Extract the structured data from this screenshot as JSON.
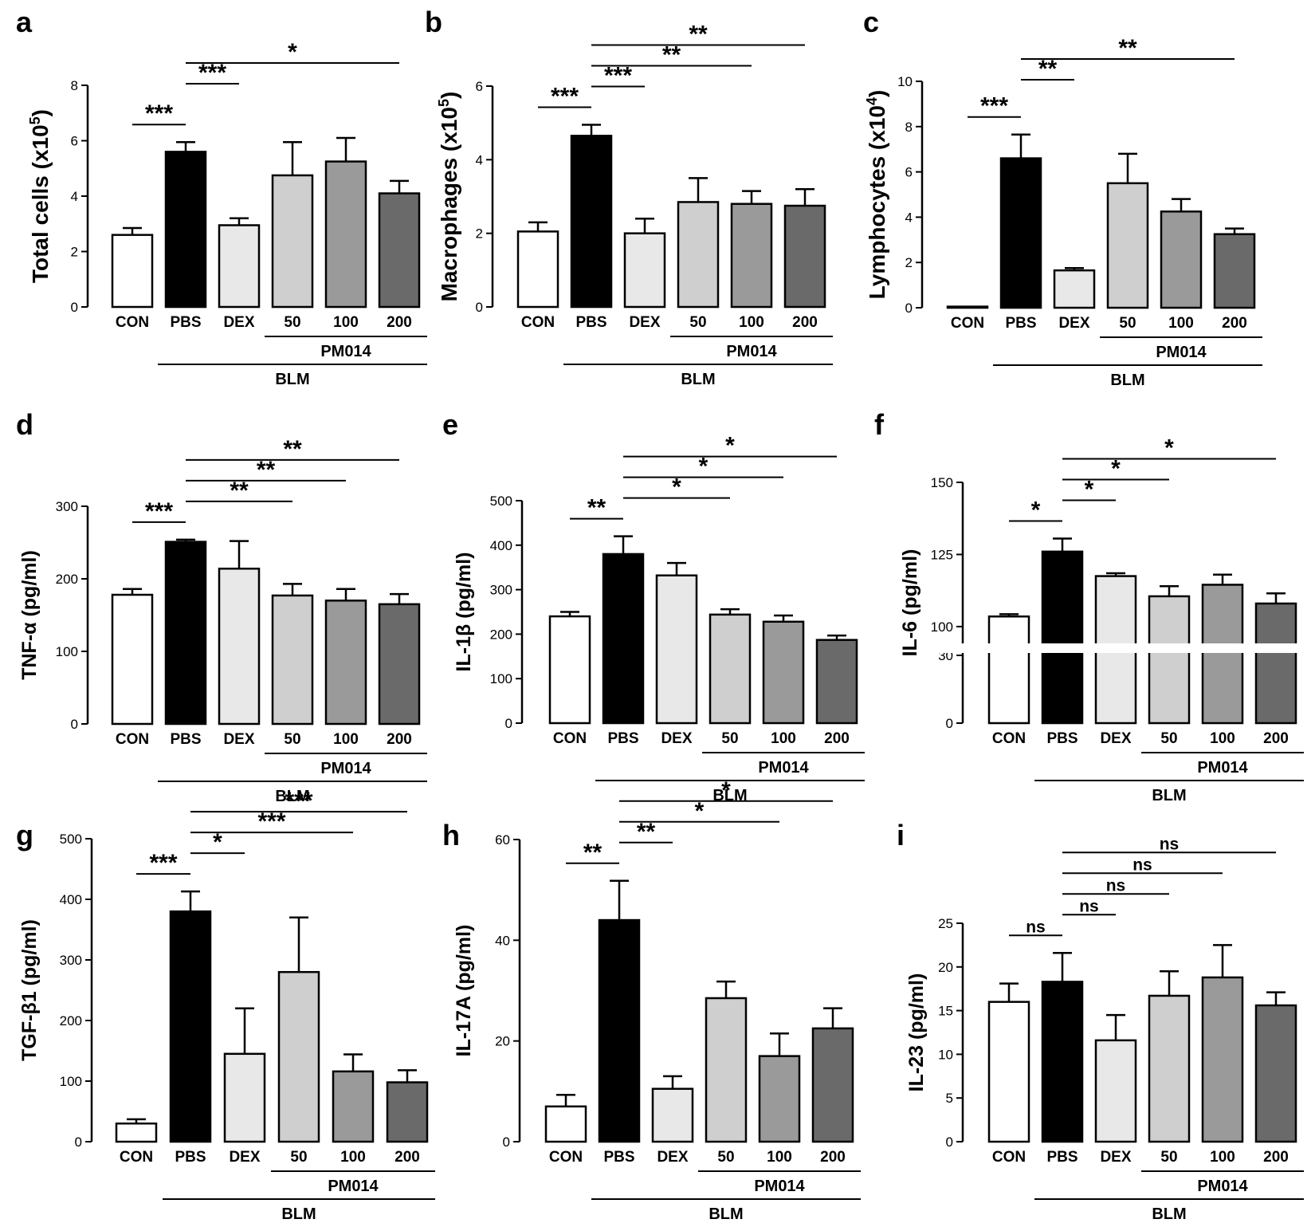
{
  "figure": {
    "description_groups": {
      "categories": [
        "CON",
        "PBS",
        "DEX",
        "50",
        "100",
        "200"
      ],
      "group_label_1": "PM014",
      "group_label_2": "BLM"
    }
  },
  "colors": {
    "CON": "#ffffff",
    "PBS": "#000000",
    "DEX": "#e8e8e8",
    "d50": "#cfcfcf",
    "d100": "#9a9a9a",
    "d200": "#6a6a6a",
    "stroke": "#000000"
  },
  "chart_data": [
    {
      "panel": "a",
      "type": "bar",
      "ylabel_main": "Total cells (x10",
      "ylabel_sup": "5",
      "ylabel_end": ")",
      "categories": [
        "CON",
        "PBS",
        "DEX",
        "50",
        "100",
        "200"
      ],
      "values": [
        2.6,
        5.6,
        2.95,
        4.75,
        5.25,
        4.1
      ],
      "errors": [
        0.25,
        0.35,
        0.25,
        1.2,
        0.85,
        0.45
      ],
      "ylim": [
        0,
        8
      ],
      "ticks": [
        "0",
        "2",
        "4",
        "6",
        "8"
      ],
      "tick_values": [
        0,
        2,
        4,
        6,
        8
      ],
      "group_label_1": "PM014",
      "group_label_2": "BLM",
      "sig": [
        {
          "from": 0,
          "to": 1,
          "label": "***"
        },
        {
          "from": 1,
          "to": 2,
          "label": "***"
        },
        {
          "from": 1,
          "to": 5,
          "label": "*"
        }
      ]
    },
    {
      "panel": "b",
      "type": "bar",
      "ylabel_main": "Macrophages (x10",
      "ylabel_sup": "5",
      "ylabel_end": ")",
      "categories": [
        "CON",
        "PBS",
        "DEX",
        "50",
        "100",
        "200"
      ],
      "values": [
        2.05,
        4.65,
        2.0,
        2.85,
        2.8,
        2.75
      ],
      "errors": [
        0.25,
        0.3,
        0.4,
        0.65,
        0.35,
        0.45
      ],
      "ylim": [
        0,
        6
      ],
      "ticks": [
        "0",
        "2",
        "4",
        "6"
      ],
      "tick_values": [
        0,
        2,
        4,
        6
      ],
      "group_label_1": "PM014",
      "group_label_2": "BLM",
      "sig": [
        {
          "from": 0,
          "to": 1,
          "label": "***"
        },
        {
          "from": 1,
          "to": 2,
          "label": "***"
        },
        {
          "from": 1,
          "to": 4,
          "label": "**"
        },
        {
          "from": 1,
          "to": 5,
          "label": "**"
        }
      ]
    },
    {
      "panel": "c",
      "type": "bar",
      "ylabel_main": "Lymphocytes (x10",
      "ylabel_sup": "4",
      "ylabel_end": ")",
      "categories": [
        "CON",
        "PBS",
        "DEX",
        "50",
        "100",
        "200"
      ],
      "values": [
        0.05,
        6.6,
        1.65,
        5.5,
        4.25,
        3.25
      ],
      "errors": [
        0.0,
        1.05,
        0.1,
        1.3,
        0.55,
        0.25
      ],
      "ylim": [
        0,
        10
      ],
      "ticks": [
        "0",
        "2",
        "4",
        "6",
        "8",
        "10"
      ],
      "tick_values": [
        0,
        2,
        4,
        6,
        8,
        10
      ],
      "group_label_1": "PM014",
      "group_label_2": "BLM",
      "sig": [
        {
          "from": 0,
          "to": 1,
          "label": "***"
        },
        {
          "from": 1,
          "to": 2,
          "label": "**"
        },
        {
          "from": 1,
          "to": 5,
          "label": "**"
        }
      ]
    },
    {
      "panel": "d",
      "type": "bar",
      "ylabel_main": "TNF-α (pg/ml)",
      "ylabel_sup": "",
      "ylabel_end": "",
      "categories": [
        "CON",
        "PBS",
        "DEX",
        "50",
        "100",
        "200"
      ],
      "values": [
        178,
        251,
        214,
        177,
        170,
        165
      ],
      "errors": [
        8,
        3,
        38,
        16,
        16,
        14
      ],
      "ylim": [
        0,
        300
      ],
      "ticks": [
        "0",
        "100",
        "200",
        "300"
      ],
      "tick_values": [
        0,
        100,
        200,
        300
      ],
      "group_label_1": "PM014",
      "group_label_2": "BLM",
      "sig": [
        {
          "from": 0,
          "to": 1,
          "label": "***"
        },
        {
          "from": 1,
          "to": 3,
          "label": "**"
        },
        {
          "from": 1,
          "to": 4,
          "label": "**"
        },
        {
          "from": 1,
          "to": 5,
          "label": "**"
        }
      ]
    },
    {
      "panel": "e",
      "type": "bar",
      "ylabel_main": "IL-1β (pg/ml)",
      "ylabel_sup": "",
      "ylabel_end": "",
      "categories": [
        "CON",
        "PBS",
        "DEX",
        "50",
        "100",
        "200"
      ],
      "values": [
        240,
        380,
        332,
        244,
        228,
        187
      ],
      "errors": [
        10,
        40,
        28,
        12,
        14,
        10
      ],
      "ylim": [
        0,
        500
      ],
      "ticks": [
        "0",
        "100",
        "200",
        "300",
        "400",
        "500"
      ],
      "tick_values": [
        0,
        100,
        200,
        300,
        400,
        500
      ],
      "group_label_1": "PM014",
      "group_label_2": "BLM",
      "sig": [
        {
          "from": 0,
          "to": 1,
          "label": "**"
        },
        {
          "from": 1,
          "to": 3,
          "label": "*"
        },
        {
          "from": 1,
          "to": 4,
          "label": "*"
        },
        {
          "from": 1,
          "to": 5,
          "label": "*"
        }
      ]
    },
    {
      "panel": "f",
      "type": "bar",
      "broken_axis": true,
      "ylabel_main": "IL-6 (pg/ml)",
      "ylabel_sup": "",
      "ylabel_end": "",
      "categories": [
        "CON",
        "PBS",
        "DEX",
        "50",
        "100",
        "200"
      ],
      "values": [
        103.5,
        126,
        117.5,
        110.5,
        114.5,
        108
      ],
      "errors": [
        0.8,
        4.5,
        1.0,
        3.5,
        3.5,
        3.5
      ],
      "ylim": [
        0,
        150
      ],
      "ticks": [
        "0",
        "30",
        "100",
        "125",
        "150"
      ],
      "tick_values": [
        0,
        30,
        100,
        125,
        150
      ],
      "axis_break": [
        30,
        95
      ],
      "group_label_1": "PM014",
      "group_label_2": "BLM",
      "sig": [
        {
          "from": 0,
          "to": 1,
          "label": "*"
        },
        {
          "from": 1,
          "to": 2,
          "label": "*"
        },
        {
          "from": 1,
          "to": 3,
          "label": "*"
        },
        {
          "from": 1,
          "to": 5,
          "label": "*"
        }
      ]
    },
    {
      "panel": "g",
      "type": "bar",
      "ylabel_main": "TGF-β1 (pg/ml)",
      "ylabel_sup": "",
      "ylabel_end": "",
      "categories": [
        "CON",
        "PBS",
        "DEX",
        "50",
        "100",
        "200"
      ],
      "values": [
        30,
        380,
        145,
        280,
        116,
        98
      ],
      "errors": [
        7,
        33,
        75,
        90,
        28,
        20
      ],
      "ylim": [
        0,
        500
      ],
      "ticks": [
        "0",
        "100",
        "200",
        "300",
        "400",
        "500"
      ],
      "tick_values": [
        0,
        100,
        200,
        300,
        400,
        500
      ],
      "group_label_1": "PM014",
      "group_label_2": "BLM",
      "sig": [
        {
          "from": 0,
          "to": 1,
          "label": "***"
        },
        {
          "from": 1,
          "to": 2,
          "label": "*"
        },
        {
          "from": 1,
          "to": 4,
          "label": "***"
        },
        {
          "from": 1,
          "to": 5,
          "label": "***"
        }
      ]
    },
    {
      "panel": "h",
      "type": "bar",
      "ylabel_main": "IL-17A (pg/ml)",
      "ylabel_sup": "",
      "ylabel_end": "",
      "categories": [
        "CON",
        "PBS",
        "DEX",
        "50",
        "100",
        "200"
      ],
      "values": [
        7,
        44,
        10.5,
        28.5,
        17,
        22.5
      ],
      "errors": [
        2.3,
        7.8,
        2.5,
        3.3,
        4.5,
        4
      ],
      "ylim": [
        0,
        60
      ],
      "ticks": [
        "0",
        "20",
        "40",
        "60"
      ],
      "tick_values": [
        0,
        20,
        40,
        60
      ],
      "group_label_1": "PM014",
      "group_label_2": "BLM",
      "sig": [
        {
          "from": 0,
          "to": 1,
          "label": "**"
        },
        {
          "from": 1,
          "to": 2,
          "label": "**"
        },
        {
          "from": 1,
          "to": 4,
          "label": "*"
        },
        {
          "from": 1,
          "to": 5,
          "label": "*"
        }
      ]
    },
    {
      "panel": "i",
      "type": "bar",
      "ylabel_main": "IL-23 (pg/ml)",
      "ylabel_sup": "",
      "ylabel_end": "",
      "categories": [
        "CON",
        "PBS",
        "DEX",
        "50",
        "100",
        "200"
      ],
      "values": [
        16,
        18.3,
        11.6,
        16.7,
        18.8,
        15.6
      ],
      "errors": [
        2.1,
        3.3,
        2.9,
        2.8,
        3.7,
        1.5
      ],
      "ylim": [
        0,
        25
      ],
      "ticks": [
        "0",
        "5",
        "10",
        "15",
        "20",
        "25"
      ],
      "tick_values": [
        0,
        5,
        10,
        15,
        20,
        25
      ],
      "group_label_1": "PM014",
      "group_label_2": "BLM",
      "sig": [
        {
          "from": 0,
          "to": 1,
          "label": "ns"
        },
        {
          "from": 1,
          "to": 2,
          "label": "ns"
        },
        {
          "from": 1,
          "to": 3,
          "label": "ns"
        },
        {
          "from": 1,
          "to": 4,
          "label": "ns"
        },
        {
          "from": 1,
          "to": 5,
          "label": "ns"
        }
      ]
    }
  ]
}
